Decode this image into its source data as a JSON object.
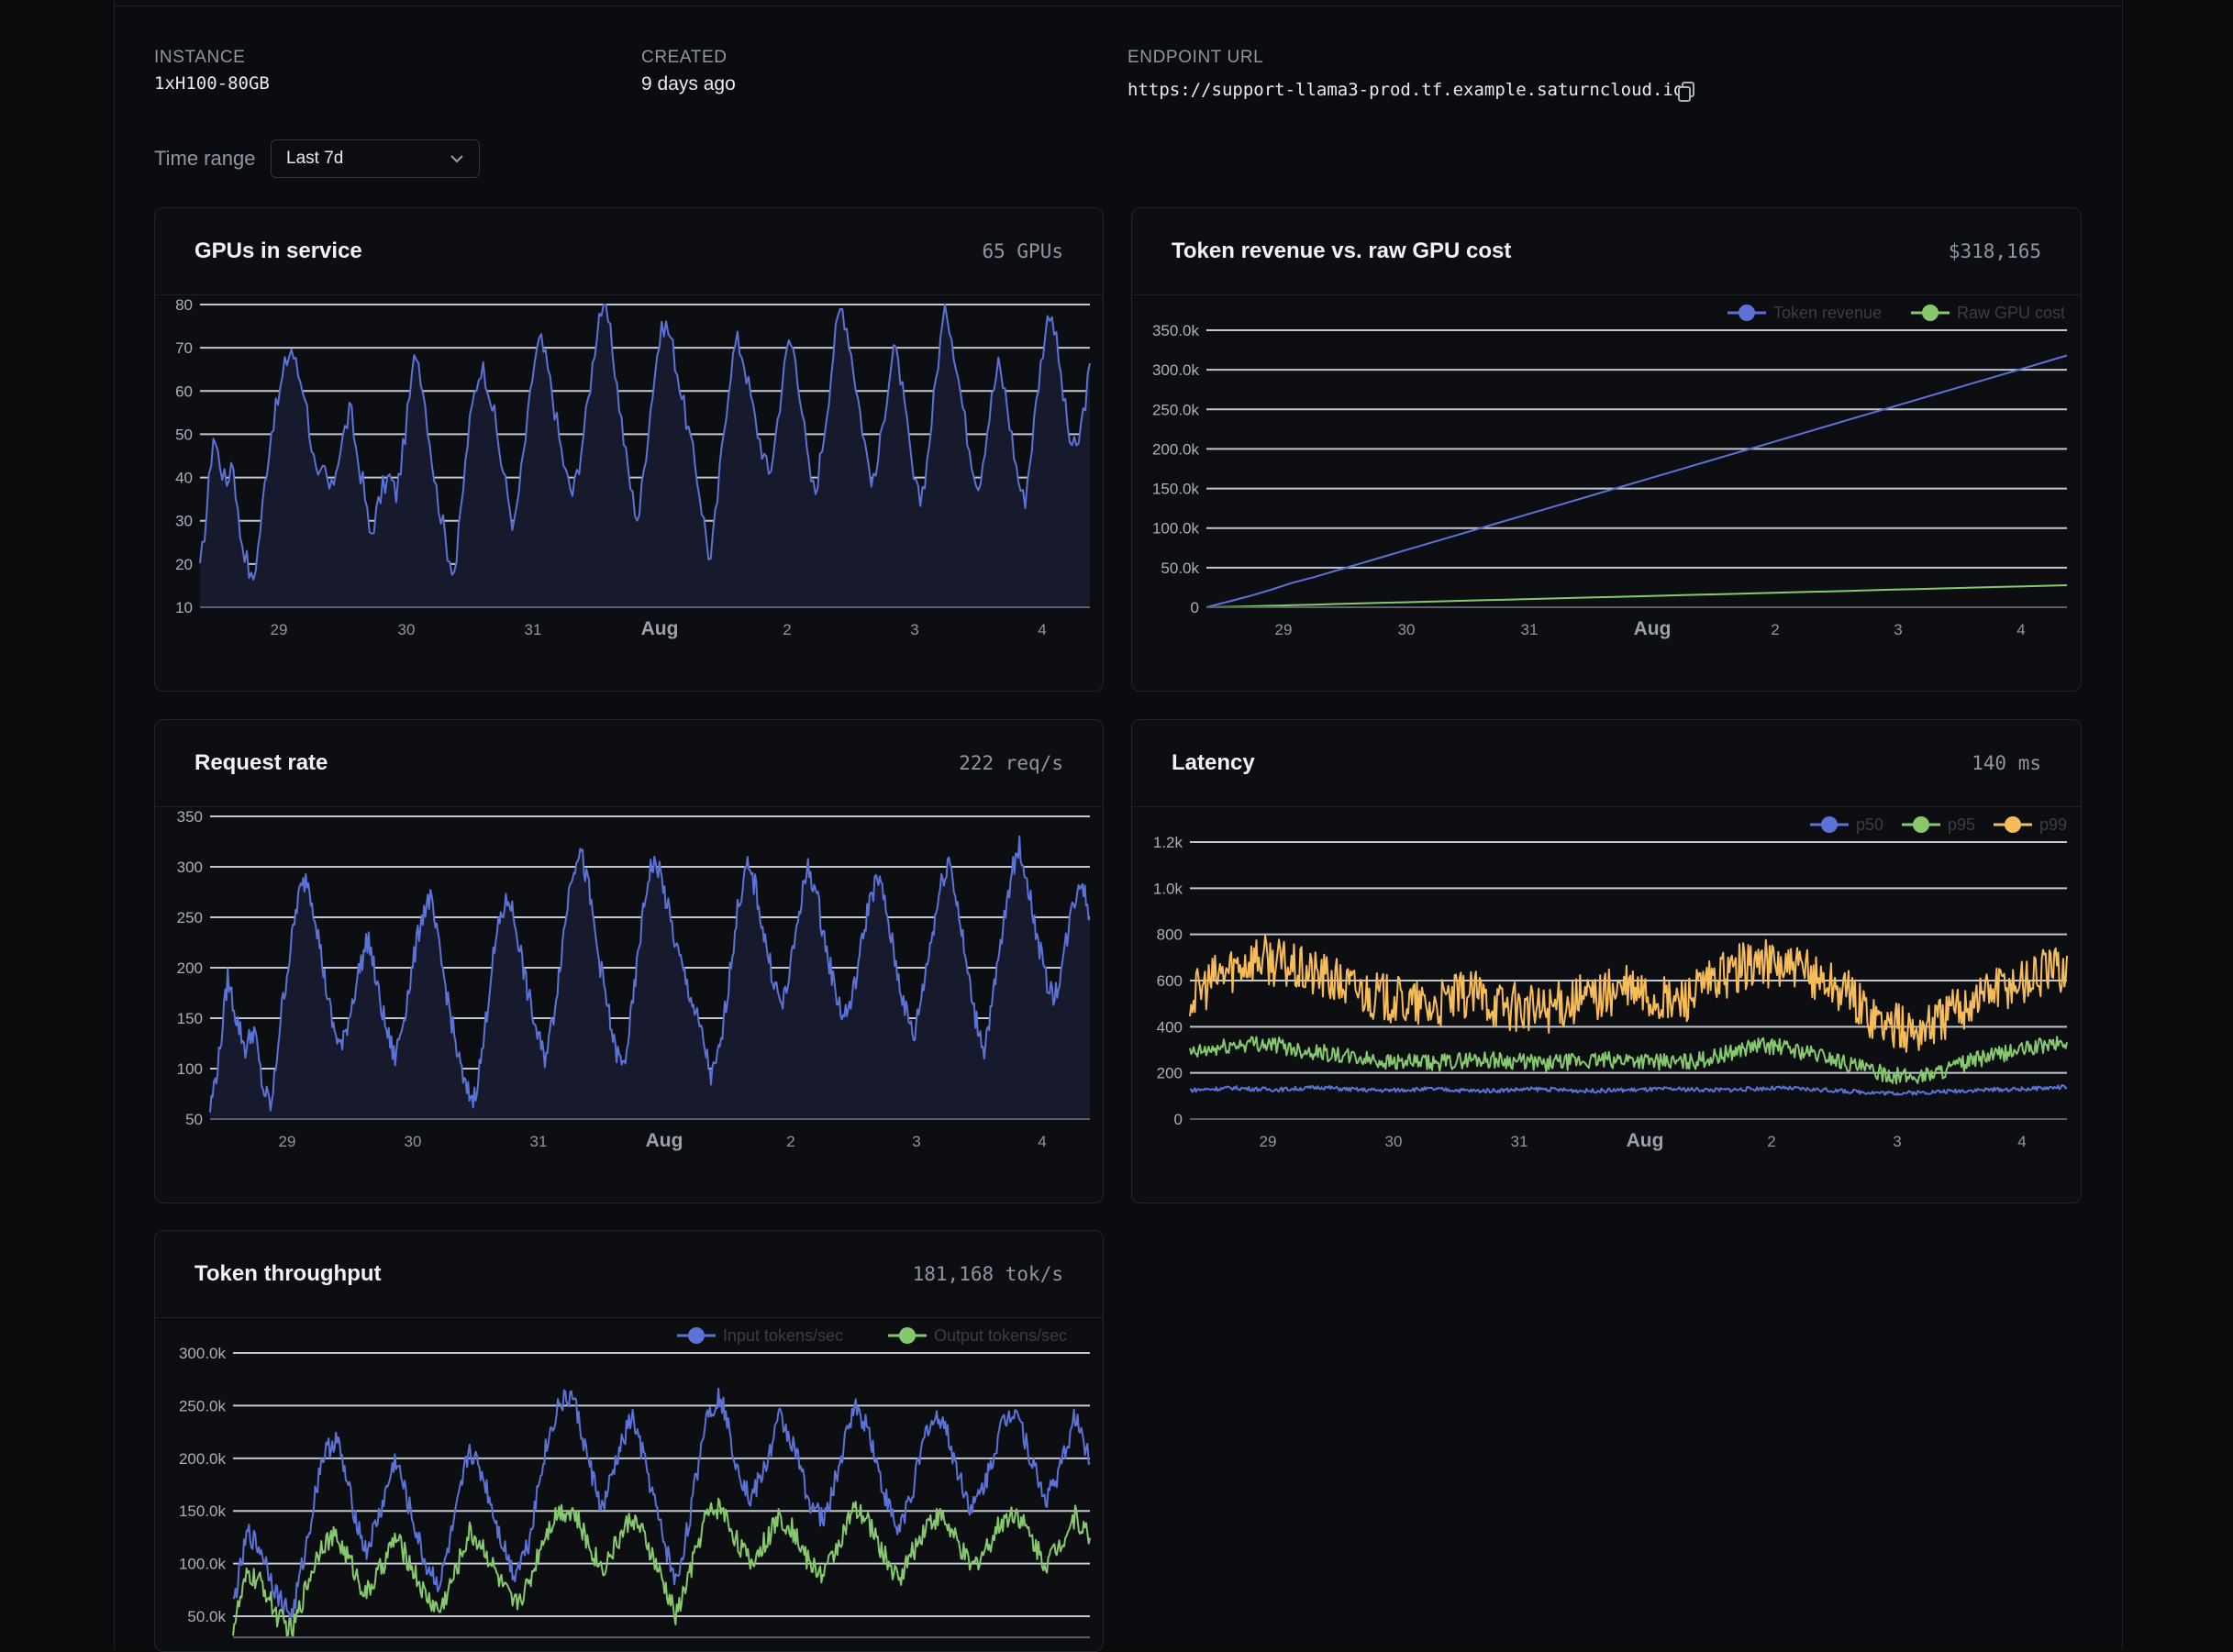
{
  "meta": {
    "instance": {
      "label": "INSTANCE",
      "value": "1xH100-80GB"
    },
    "created": {
      "label": "CREATED",
      "value": "9 days ago"
    },
    "endpoint": {
      "label": "ENDPOINT URL",
      "value": "https://support-llama3-prod.tf.example.saturncloud.io"
    }
  },
  "time_range": {
    "label": "Time range",
    "value": "Last 7d"
  },
  "x_ticks": [
    "29",
    "30",
    "31",
    "Aug",
    "2",
    "3",
    "4"
  ],
  "colors": {
    "blue": "#5b73d6",
    "green": "#86c86e",
    "yellow": "#f6bc5a",
    "grid": "#c3c7d0",
    "fill": "#161a2c"
  },
  "cards": {
    "gpus": {
      "title": "GPUs in service",
      "stat": "65 GPUs"
    },
    "revenue": {
      "title": "Token revenue vs. raw GPU cost",
      "stat": "$318,165"
    },
    "requests": {
      "title": "Request rate",
      "stat": "222 req/s"
    },
    "latency": {
      "title": "Latency",
      "stat": "140 ms"
    },
    "throughput": {
      "title": "Token throughput",
      "stat": "181,168 tok/s"
    }
  },
  "chart_data": [
    {
      "id": "gpus",
      "type": "area",
      "title": "GPUs in service",
      "y_ticks": [
        "10",
        "20",
        "30",
        "40",
        "50",
        "60",
        "70",
        "80"
      ],
      "ylim": [
        10,
        80
      ],
      "x_range": [
        "Jul 28",
        "Aug 4"
      ],
      "series": [
        {
          "values": [
            18,
            32,
            50,
            44,
            38,
            45,
            28,
            22,
            15,
            25,
            40,
            52,
            58,
            66,
            70,
            64,
            60,
            48,
            38,
            42,
            36,
            44,
            50,
            56,
            45,
            38,
            26,
            32,
            38,
            40,
            36,
            46,
            58,
            70,
            62,
            50,
            38,
            30,
            22,
            18,
            34,
            50,
            60,
            66,
            62,
            54,
            44,
            36,
            28,
            40,
            52,
            66,
            72,
            66,
            58,
            48,
            40,
            36,
            44,
            54,
            66,
            78,
            80,
            70,
            58,
            46,
            36,
            30,
            44,
            58,
            70,
            76,
            72,
            64,
            56,
            48,
            40,
            30,
            20,
            34,
            50,
            64,
            72,
            68,
            60,
            52,
            46,
            40,
            50,
            62,
            72,
            68,
            56,
            42,
            36,
            46,
            58,
            72,
            80,
            74,
            64,
            54,
            44,
            38,
            48,
            60,
            70,
            64,
            52,
            40,
            34,
            42,
            56,
            70,
            80,
            72,
            62,
            52,
            44,
            38,
            48,
            58,
            66,
            60,
            50,
            40,
            34,
            46,
            60,
            72,
            80,
            70,
            58,
            48,
            46,
            55,
            65
          ]
        }
      ]
    },
    {
      "id": "revenue",
      "type": "line",
      "title": "Token revenue vs. raw GPU cost",
      "y_ticks": [
        "0",
        "50.0k",
        "100.0k",
        "150.0k",
        "200.0k",
        "250.0k",
        "300.0k",
        "350.0k"
      ],
      "ylim": [
        0,
        350000
      ],
      "x_range": [
        "Jul 28",
        "Aug 4"
      ],
      "series": [
        {
          "name": "Token revenue",
          "values": [
            0,
            7000,
            14000,
            22000,
            31000,
            38000,
            46000,
            54000,
            62000,
            70000,
            78000,
            86000,
            94000,
            102000,
            110000,
            118000,
            126000,
            134000,
            142000,
            150000,
            158000,
            166000,
            174000,
            182000,
            190000,
            198000,
            206000,
            214000,
            222000,
            230000,
            238000,
            246000,
            254000,
            262000,
            270000,
            278000,
            286000,
            294000,
            302000,
            310000,
            318165
          ]
        },
        {
          "name": "Raw GPU cost",
          "values": [
            0,
            600,
            1200,
            1900,
            2600,
            3300,
            4000,
            4700,
            5400,
            6100,
            6800,
            7500,
            8200,
            8900,
            9600,
            10300,
            11000,
            11700,
            12400,
            13100,
            13800,
            14500,
            15200,
            15900,
            16600,
            17300,
            18000,
            18700,
            19400,
            20100,
            20800,
            21500,
            22200,
            22900,
            23600,
            24300,
            25000,
            25700,
            26400,
            27100,
            27800
          ]
        }
      ]
    },
    {
      "id": "requests",
      "type": "area",
      "title": "Request rate",
      "y_ticks": [
        "50",
        "100",
        "150",
        "200",
        "250",
        "300",
        "350"
      ],
      "ylim": [
        50,
        350
      ],
      "x_range": [
        "Jul 28",
        "Aug 4"
      ],
      "series": [
        {
          "values": [
            60,
            110,
            190,
            150,
            120,
            140,
            80,
            62,
            150,
            210,
            270,
            290,
            250,
            190,
            140,
            120,
            160,
            200,
            230,
            180,
            140,
            110,
            150,
            200,
            250,
            270,
            220,
            170,
            120,
            80,
            70,
            120,
            200,
            250,
            270,
            230,
            180,
            140,
            110,
            150,
            220,
            290,
            320,
            280,
            220,
            170,
            120,
            100,
            160,
            240,
            300,
            300,
            260,
            220,
            190,
            160,
            130,
            90,
            120,
            190,
            260,
            300,
            280,
            230,
            190,
            160,
            200,
            260,
            300,
            270,
            220,
            180,
            150,
            170,
            220,
            270,
            290,
            250,
            200,
            160,
            130,
            180,
            230,
            280,
            310,
            260,
            200,
            150,
            120,
            170,
            230,
            290,
            320,
            280,
            230,
            190,
            170,
            210,
            260,
            290,
            250
          ]
        }
      ]
    },
    {
      "id": "latency",
      "type": "line",
      "title": "Latency",
      "y_ticks": [
        "0",
        "200",
        "400",
        "600",
        "800",
        "1.0k",
        "1.2k"
      ],
      "ylim": [
        0,
        1200
      ],
      "x_range": [
        "Jul 28",
        "Aug 4"
      ],
      "series": [
        {
          "name": "p50",
          "values": [
            125,
            130,
            135,
            130,
            128,
            132,
            138,
            130,
            126,
            124,
            128,
            130,
            126,
            122,
            124,
            128,
            130,
            126,
            122,
            124,
            126,
            128,
            130,
            128,
            126,
            128,
            132,
            134,
            130,
            126,
            120,
            116,
            112,
            114,
            118,
            122,
            126,
            128,
            130,
            134,
            140
          ]
        },
        {
          "name": "p95",
          "values": [
            280,
            300,
            320,
            330,
            320,
            300,
            290,
            270,
            260,
            250,
            245,
            240,
            250,
            260,
            255,
            250,
            240,
            245,
            250,
            255,
            260,
            250,
            245,
            250,
            270,
            300,
            320,
            310,
            290,
            270,
            240,
            210,
            190,
            180,
            200,
            230,
            260,
            280,
            300,
            320,
            330
          ]
        },
        {
          "name": "p99",
          "values": [
            520,
            600,
            660,
            700,
            680,
            640,
            620,
            580,
            550,
            520,
            500,
            480,
            520,
            540,
            500,
            480,
            470,
            500,
            520,
            540,
            560,
            520,
            500,
            540,
            600,
            650,
            680,
            660,
            630,
            600,
            540,
            460,
            400,
            380,
            420,
            480,
            540,
            580,
            600,
            640,
            660
          ]
        }
      ]
    },
    {
      "id": "throughput",
      "type": "line",
      "title": "Token throughput",
      "y_ticks": [
        "50.0k",
        "100.0k",
        "150.0k",
        "200.0k",
        "250.0k",
        "300.0k"
      ],
      "ylim": [
        30000,
        300000
      ],
      "x_range": [
        "Jul 28",
        "Aug 4"
      ],
      "series": [
        {
          "name": "Input tokens/sec",
          "values": [
            60000,
            130000,
            110000,
            70000,
            50000,
            120000,
            200000,
            220000,
            160000,
            110000,
            150000,
            200000,
            150000,
            100000,
            80000,
            140000,
            210000,
            180000,
            130000,
            90000,
            120000,
            200000,
            250000,
            260000,
            200000,
            150000,
            200000,
            240000,
            190000,
            130000,
            80000,
            150000,
            240000,
            260000,
            200000,
            160000,
            190000,
            240000,
            210000,
            160000,
            140000,
            190000,
            250000,
            230000,
            170000,
            130000,
            170000,
            230000,
            240000,
            190000,
            150000,
            180000,
            230000,
            250000,
            200000,
            160000,
            190000,
            240000,
            200000
          ]
        },
        {
          "name": "Output tokens/sec",
          "values": [
            40000,
            90000,
            80000,
            50000,
            35000,
            80000,
            120000,
            125000,
            100000,
            70000,
            95000,
            125000,
            100000,
            70000,
            55000,
            90000,
            130000,
            115000,
            85000,
            60000,
            80000,
            125000,
            150000,
            150000,
            120000,
            95000,
            120000,
            145000,
            120000,
            85000,
            50000,
            95000,
            145000,
            155000,
            125000,
            100000,
            120000,
            145000,
            130000,
            100000,
            90000,
            120000,
            150000,
            140000,
            110000,
            85000,
            110000,
            140000,
            145000,
            120000,
            95000,
            115000,
            140000,
            150000,
            125000,
            100000,
            120000,
            145000,
            125000
          ]
        }
      ]
    }
  ]
}
